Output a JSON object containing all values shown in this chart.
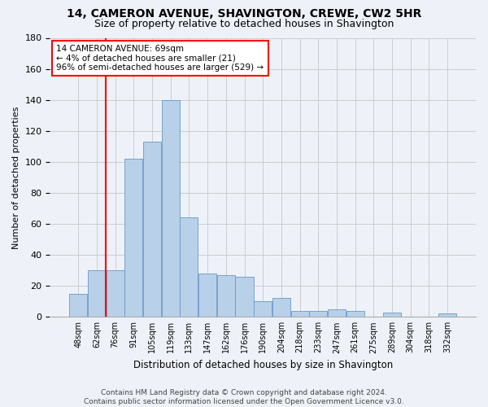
{
  "title": "14, CAMERON AVENUE, SHAVINGTON, CREWE, CW2 5HR",
  "subtitle": "Size of property relative to detached houses in Shavington",
  "xlabel": "Distribution of detached houses by size in Shavington",
  "ylabel": "Number of detached properties",
  "bin_labels": [
    "48sqm",
    "62sqm",
    "76sqm",
    "91sqm",
    "105sqm",
    "119sqm",
    "133sqm",
    "147sqm",
    "162sqm",
    "176sqm",
    "190sqm",
    "204sqm",
    "218sqm",
    "233sqm",
    "247sqm",
    "261sqm",
    "275sqm",
    "289sqm",
    "304sqm",
    "318sqm",
    "332sqm"
  ],
  "bar_values": [
    15,
    30,
    30,
    102,
    113,
    140,
    64,
    28,
    27,
    26,
    10,
    12,
    4,
    4,
    5,
    4,
    0,
    3,
    0,
    0,
    2
  ],
  "bar_color": "#b8d0e8",
  "bar_edge_color": "#6699cc",
  "vline_color": "red",
  "annotation_line1": "14 CAMERON AVENUE: 69sqm",
  "annotation_line2": "← 4% of detached houses are smaller (21)",
  "annotation_line3": "96% of semi-detached houses are larger (529) →",
  "annotation_box_color": "white",
  "annotation_box_edge": "red",
  "ylim": [
    0,
    180
  ],
  "yticks": [
    0,
    20,
    40,
    60,
    80,
    100,
    120,
    140,
    160,
    180
  ],
  "grid_color": "#cccccc",
  "background_color": "#eef2f8",
  "footer1": "Contains HM Land Registry data © Crown copyright and database right 2024.",
  "footer2": "Contains public sector information licensed under the Open Government Licence v3.0."
}
